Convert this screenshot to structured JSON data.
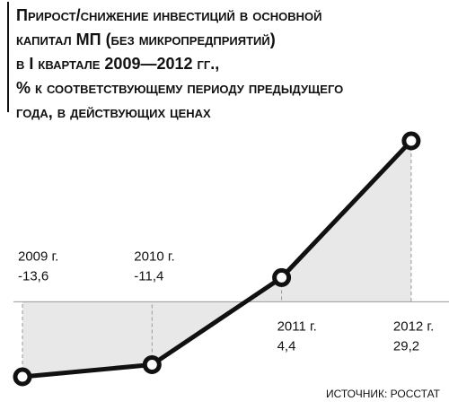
{
  "chart_data": {
    "type": "line",
    "title": [
      "Прирост/снижение инвестиций в основной",
      "капитал МП (без микропредприятий)",
      "в I квартале 2009—2012 гг.,",
      "% к соответствующему периоду предыдущего",
      "года, в действующих ценах"
    ],
    "categories": [
      "2009 г.",
      "2010 г.",
      "2011 г.",
      "2012 г."
    ],
    "values": [
      -13.6,
      -11.4,
      4.4,
      29.2
    ],
    "value_labels": [
      "-13,6",
      "-11,4",
      "4,4",
      "29,2"
    ],
    "color": "#111111",
    "source": "ИСТОЧНИК: РОССТАТ"
  }
}
